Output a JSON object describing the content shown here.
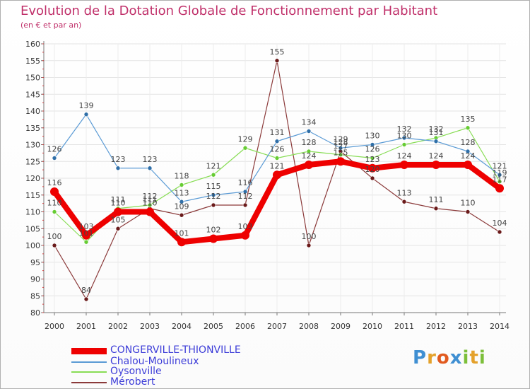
{
  "title": "Evolution de la Dotation Globale de Fonctionnement par Habitant",
  "subtitle": "(en € et par an)",
  "logo": {
    "letters": [
      {
        "ch": "P",
        "color": "#3f8fd2"
      },
      {
        "ch": "r",
        "color": "#e4a12b"
      },
      {
        "ch": "o",
        "color": "#e15a1f"
      },
      {
        "ch": "x",
        "color": "#3f8fd2"
      },
      {
        "ch": "i",
        "color": "#7cbf3a"
      },
      {
        "ch": "t",
        "color": "#e4a12b"
      },
      {
        "ch": "i",
        "color": "#7cbf3a"
      }
    ]
  },
  "chart_data": {
    "type": "line",
    "x": [
      "2000",
      "2001",
      "2002",
      "2003",
      "2004",
      "2005",
      "2006",
      "2007",
      "2008",
      "2009",
      "2010",
      "2011",
      "2012",
      "2013",
      "2014"
    ],
    "yticks": [
      80,
      85,
      90,
      95,
      100,
      105,
      110,
      115,
      120,
      125,
      130,
      135,
      140,
      145,
      150,
      155,
      160
    ],
    "ylim": [
      80,
      160
    ],
    "grid": true,
    "legend_position": "bottom-left",
    "series": [
      {
        "name": "CONGERVILLE-THIONVILLE",
        "color": "#ee0000",
        "values": [
          116,
          103,
          110,
          110,
          101,
          102,
          103,
          121,
          124,
          125,
          123,
          124,
          124,
          124,
          117
        ],
        "labels": [
          "116",
          "103",
          "110",
          "110",
          "101",
          "102",
          "103",
          "121",
          "124",
          "125",
          "123",
          "124",
          "124",
          "124",
          "117"
        ]
      },
      {
        "name": "Chalou-Moulineux",
        "color": "#5b9bd5",
        "dot_color": "#2f6fa8",
        "values": [
          126,
          139,
          123,
          123,
          113,
          115,
          116,
          131,
          134,
          129,
          130,
          132,
          131,
          128,
          121
        ],
        "labels": [
          "126",
          "139",
          "123",
          "123",
          "113",
          "115",
          "116",
          "131",
          "134",
          "129",
          "130",
          "132",
          "131",
          "128",
          "121"
        ]
      },
      {
        "name": "Oysonville",
        "color": "#88dd55",
        "dot_color": "#66cc33",
        "values": [
          110,
          101,
          111,
          112,
          118,
          121,
          129,
          126,
          128,
          127,
          126,
          130,
          132,
          135,
          119
        ],
        "labels": [
          "110",
          "101",
          "111",
          "112",
          "118",
          "121",
          "129",
          "126",
          "128",
          "127",
          "126",
          "130",
          "132",
          "135",
          "119"
        ]
      },
      {
        "name": "Mérobert",
        "color": "#8b3a3a",
        "dot_color": "#6a1a1a",
        "values": [
          100,
          84,
          105,
          111,
          109,
          112,
          112,
          155,
          100,
          128,
          120,
          113,
          111,
          110,
          104
        ],
        "labels": [
          "100",
          "84",
          "105",
          "111",
          "109",
          "112",
          "112",
          "155",
          "100",
          "128",
          "120",
          "113",
          "111",
          "110",
          "104"
        ]
      }
    ]
  }
}
